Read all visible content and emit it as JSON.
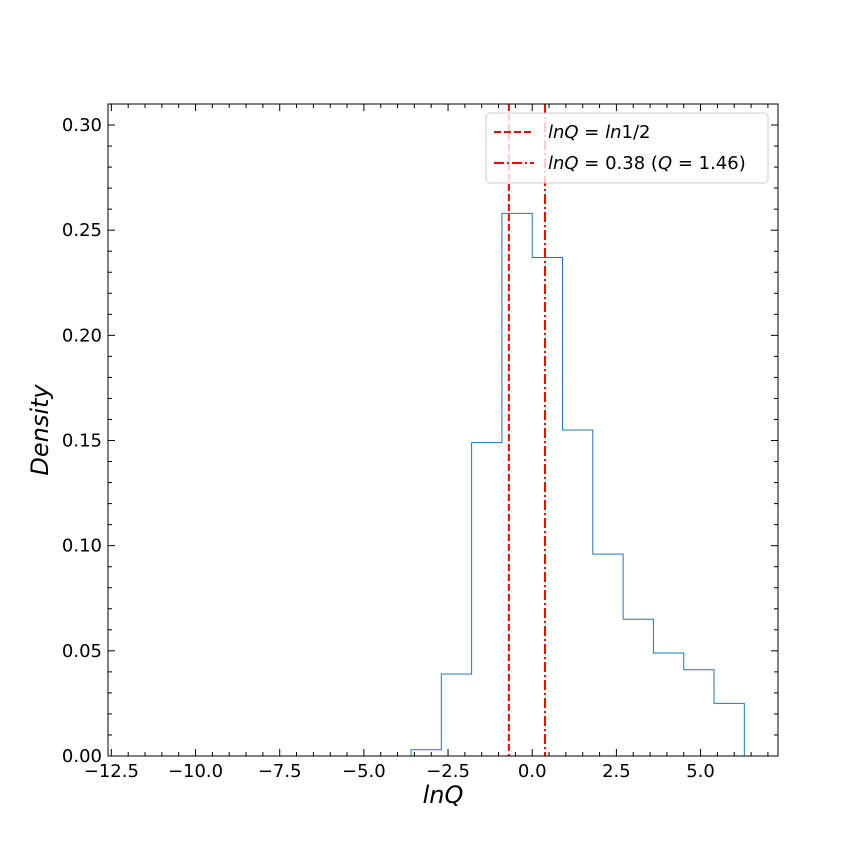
{
  "chart_data": {
    "type": "histogram",
    "xlabel": "lnQ",
    "ylabel": "Density",
    "xlim": [
      -12.6,
      7.3
    ],
    "ylim": [
      0.0,
      0.31
    ],
    "x_ticks": [
      -12.5,
      -10.0,
      -7.5,
      -5.0,
      -2.5,
      0.0,
      2.5,
      5.0
    ],
    "x_tick_labels": [
      "−12.5",
      "−10.0",
      "−7.5",
      "−5.0",
      "−2.5",
      "0.0",
      "2.5",
      "5.0"
    ],
    "y_ticks": [
      0.0,
      0.05,
      0.1,
      0.15,
      0.2,
      0.25,
      0.3
    ],
    "y_tick_labels": [
      "0.00",
      "0.05",
      "0.10",
      "0.15",
      "0.20",
      "0.25",
      "0.30"
    ],
    "bin_edges": [
      -3.6,
      -2.7,
      -1.8,
      -0.9,
      0.0,
      0.9,
      1.8,
      2.7,
      3.6,
      4.5,
      5.4,
      6.3
    ],
    "densities": [
      0.003,
      0.039,
      0.149,
      0.258,
      0.237,
      0.155,
      0.096,
      0.065,
      0.049,
      0.041,
      0.025
    ],
    "histogram_color": "#1f77b4",
    "vlines": [
      {
        "x": -0.693,
        "style": "dashed",
        "color": "#ff0000",
        "label_parts": [
          "lnQ",
          " = ",
          "ln",
          "1/2"
        ]
      },
      {
        "x": 0.38,
        "style": "dashdot",
        "color": "#ff0000",
        "label_parts": [
          "lnQ",
          " = 0.38 (",
          "Q",
          " = 1.46)"
        ]
      }
    ],
    "legend_position": "upper right",
    "grid": false
  }
}
